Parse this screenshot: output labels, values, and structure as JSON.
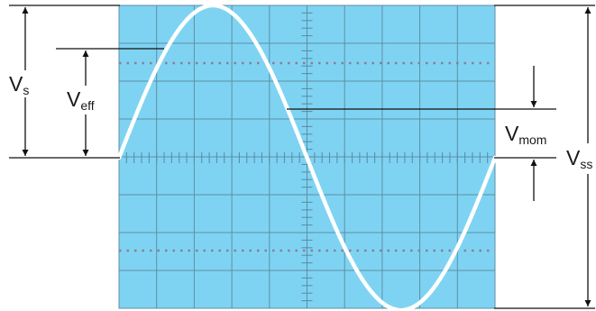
{
  "screen": {
    "color": "#7fd3f2",
    "grid_color": "#5d8fa6",
    "divisions_x": 10,
    "divisions_y": 8
  },
  "waveform": {
    "shape": "sine",
    "color": "#ffffff",
    "cycles_shown": 1
  },
  "labels": {
    "vs": {
      "main": "V",
      "sub": "s"
    },
    "veff": {
      "main": "V",
      "sub": "eff"
    },
    "vmom": {
      "main": "V",
      "sub": "mom"
    },
    "vss": {
      "main": "V",
      "sub": "ss"
    }
  }
}
